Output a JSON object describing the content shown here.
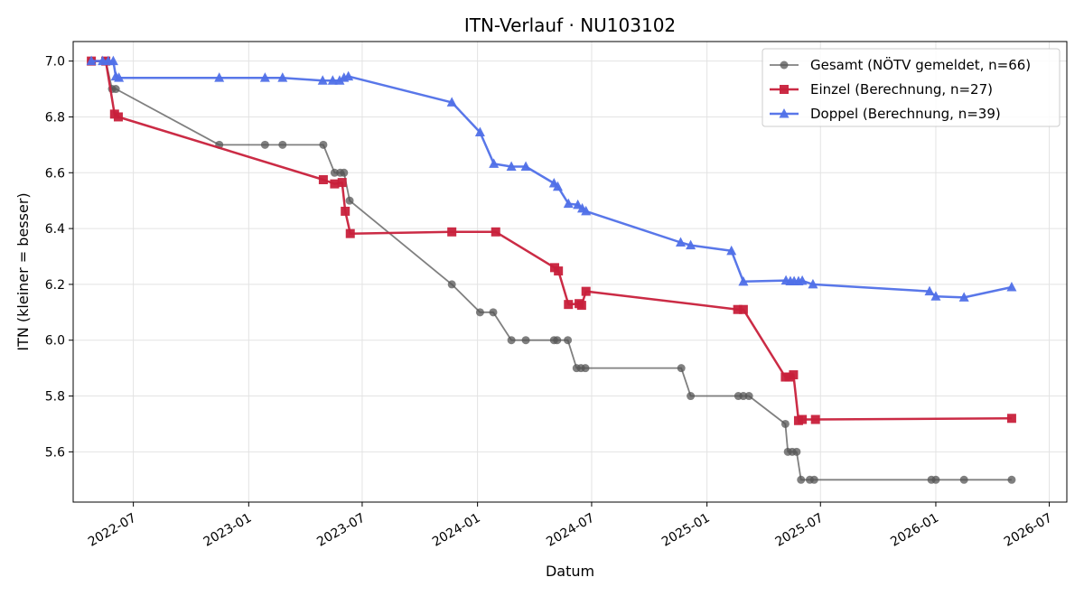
{
  "chart_data": {
    "type": "line",
    "title": "ITN-Verlauf · NU103102",
    "xlabel": "Datum",
    "ylabel": "ITN  (kleiner = besser)",
    "xlim": [
      "2022-03-27",
      "2026-07-29"
    ],
    "ylim": [
      5.42,
      7.07
    ],
    "x_ticks": [
      "2022-07",
      "2023-01",
      "2023-07",
      "2024-01",
      "2024-07",
      "2025-01",
      "2025-07",
      "2026-01",
      "2026-07"
    ],
    "y_ticks": [
      5.6,
      5.8,
      6.0,
      6.2,
      6.4,
      6.6,
      6.8,
      7.0
    ],
    "grid": true,
    "legend_position": "top-right",
    "series": [
      {
        "name": "Gesamt (NÖTV gemeldet, n=66)",
        "color": "#555555",
        "marker": "circle",
        "points": [
          [
            "2022-04-25",
            7.0
          ],
          [
            "2022-05-18",
            7.0
          ],
          [
            "2022-05-28",
            6.9
          ],
          [
            "2022-06-03",
            6.9
          ],
          [
            "2022-11-15",
            6.7
          ],
          [
            "2023-01-27",
            6.7
          ],
          [
            "2023-02-24",
            6.7
          ],
          [
            "2023-04-30",
            6.7
          ],
          [
            "2023-05-18",
            6.6
          ],
          [
            "2023-05-27",
            6.6
          ],
          [
            "2023-06-02",
            6.6
          ],
          [
            "2023-06-11",
            6.5
          ],
          [
            "2023-11-21",
            6.2
          ],
          [
            "2024-01-05",
            6.1
          ],
          [
            "2024-01-26",
            6.1
          ],
          [
            "2024-02-24",
            6.0
          ],
          [
            "2024-03-18",
            6.0
          ],
          [
            "2024-05-02",
            6.0
          ],
          [
            "2024-05-07",
            6.0
          ],
          [
            "2024-05-24",
            6.0
          ],
          [
            "2024-06-07",
            5.9
          ],
          [
            "2024-06-14",
            5.9
          ],
          [
            "2024-06-21",
            5.9
          ],
          [
            "2024-11-21",
            5.9
          ],
          [
            "2024-12-06",
            5.8
          ],
          [
            "2025-02-20",
            5.8
          ],
          [
            "2025-02-28",
            5.8
          ],
          [
            "2025-03-09",
            5.8
          ],
          [
            "2025-05-06",
            5.7
          ],
          [
            "2025-05-10",
            5.6
          ],
          [
            "2025-05-17",
            5.6
          ],
          [
            "2025-05-24",
            5.6
          ],
          [
            "2025-05-31",
            5.5
          ],
          [
            "2025-06-14",
            5.5
          ],
          [
            "2025-06-21",
            5.5
          ],
          [
            "2025-12-25",
            5.5
          ],
          [
            "2026-01-01",
            5.5
          ],
          [
            "2026-02-15",
            5.5
          ],
          [
            "2026-05-02",
            5.5
          ]
        ]
      },
      {
        "name": "Einzel (Berechnung, n=27)",
        "color": "#c8203b",
        "marker": "square",
        "points": [
          [
            "2022-04-25",
            7.0
          ],
          [
            "2022-05-18",
            7.0
          ],
          [
            "2022-06-01",
            6.81
          ],
          [
            "2022-06-07",
            6.8
          ],
          [
            "2023-04-30",
            6.575
          ],
          [
            "2023-05-18",
            6.56
          ],
          [
            "2023-05-30",
            6.565
          ],
          [
            "2023-06-04",
            6.462
          ],
          [
            "2023-06-12",
            6.382
          ],
          [
            "2023-11-21",
            6.388
          ],
          [
            "2024-01-30",
            6.388
          ],
          [
            "2024-05-03",
            6.26
          ],
          [
            "2024-05-09",
            6.248
          ],
          [
            "2024-05-25",
            6.128
          ],
          [
            "2024-06-11",
            6.131
          ],
          [
            "2024-06-15",
            6.125
          ],
          [
            "2024-06-22",
            6.175
          ],
          [
            "2025-02-19",
            6.11
          ],
          [
            "2025-02-28",
            6.11
          ],
          [
            "2025-05-06",
            5.868
          ],
          [
            "2025-05-12",
            5.868
          ],
          [
            "2025-05-19",
            5.876
          ],
          [
            "2025-05-27",
            5.712
          ],
          [
            "2025-06-02",
            5.716
          ],
          [
            "2025-06-23",
            5.716
          ],
          [
            "2026-05-02",
            5.72
          ]
        ]
      },
      {
        "name": "Doppel (Berechnung, n=39)",
        "color": "#5070e8",
        "marker": "triangle",
        "points": [
          [
            "2022-04-25",
            7.0
          ],
          [
            "2022-05-13",
            7.0
          ],
          [
            "2022-05-22",
            7.0
          ],
          [
            "2022-05-30",
            7.0
          ],
          [
            "2022-06-03",
            6.945
          ],
          [
            "2022-06-08",
            6.94
          ],
          [
            "2022-11-15",
            6.94
          ],
          [
            "2023-01-27",
            6.94
          ],
          [
            "2023-02-24",
            6.94
          ],
          [
            "2023-04-29",
            6.93
          ],
          [
            "2023-05-15",
            6.93
          ],
          [
            "2023-05-26",
            6.93
          ],
          [
            "2023-06-02",
            6.94
          ],
          [
            "2023-06-09",
            6.945
          ],
          [
            "2023-11-21",
            6.852
          ],
          [
            "2024-01-05",
            6.745
          ],
          [
            "2024-01-27",
            6.632
          ],
          [
            "2024-02-24",
            6.622
          ],
          [
            "2024-03-18",
            6.622
          ],
          [
            "2024-05-02",
            6.562
          ],
          [
            "2024-05-08",
            6.55
          ],
          [
            "2024-05-25",
            6.489
          ],
          [
            "2024-06-09",
            6.485
          ],
          [
            "2024-06-16",
            6.472
          ],
          [
            "2024-06-22",
            6.462
          ],
          [
            "2024-11-20",
            6.35
          ],
          [
            "2024-12-06",
            6.34
          ],
          [
            "2025-02-09",
            6.32
          ],
          [
            "2025-02-28",
            6.21
          ],
          [
            "2025-05-07",
            6.214
          ],
          [
            "2025-05-14",
            6.211
          ],
          [
            "2025-05-20",
            6.211
          ],
          [
            "2025-05-27",
            6.211
          ],
          [
            "2025-06-02",
            6.213
          ],
          [
            "2025-06-19",
            6.2
          ],
          [
            "2025-12-22",
            6.175
          ],
          [
            "2026-01-01",
            6.157
          ],
          [
            "2026-02-15",
            6.153
          ],
          [
            "2026-05-02",
            6.19
          ]
        ]
      }
    ]
  }
}
